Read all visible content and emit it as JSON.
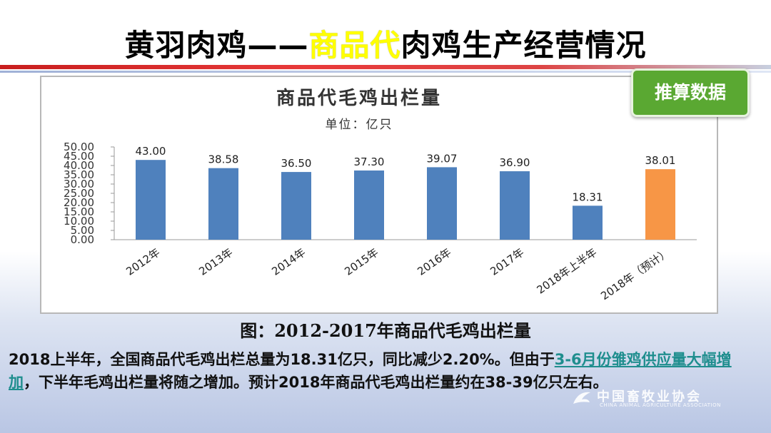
{
  "slide": {
    "title_pre": "黄羽肉鸡——",
    "title_highlight": "商品代",
    "title_post": "肉鸡生产经营情况",
    "badge": "推算数据",
    "caption": "图：2012-2017年商品代毛鸡出栏量",
    "note": {
      "part1": "2018上半年，全国商品代毛鸡出栏总量为18.31亿只，同比减少2.20%。但由于",
      "link": "3-6月份雏鸡供应量大幅增加",
      "part2": "，下半年毛鸡出栏量将随之增加。预计2018年商品代毛鸡出栏量约在38-39亿只左右。"
    },
    "watermark_cn": "中国畜牧业协会",
    "watermark_en": "CHINA ANIMAL AGRICULTURE ASSOCIATION"
  },
  "chart_data": {
    "type": "bar",
    "title": "商品代毛鸡出栏量",
    "subtitle": "单位：亿只",
    "categories": [
      "2012年",
      "2013年",
      "2014年",
      "2015年",
      "2016年",
      "2017年",
      "2018年上半年",
      "2018年（预计）"
    ],
    "values": [
      43.0,
      38.58,
      36.5,
      37.3,
      39.07,
      36.9,
      18.31,
      38.01
    ],
    "value_labels": [
      "43.00",
      "38.58",
      "36.50",
      "37.30",
      "39.07",
      "36.90",
      "18.31",
      "38.01"
    ],
    "ylim": [
      0,
      50
    ],
    "yticks": [
      "0.00",
      "5.00",
      "10.00",
      "15.00",
      "20.00",
      "25.00",
      "30.00",
      "35.00",
      "40.00",
      "45.00",
      "50.00"
    ],
    "colors": [
      "#4f81bd",
      "#4f81bd",
      "#4f81bd",
      "#4f81bd",
      "#4f81bd",
      "#4f81bd",
      "#4f81bd",
      "#f79646"
    ],
    "grid": false,
    "legend": "none"
  }
}
